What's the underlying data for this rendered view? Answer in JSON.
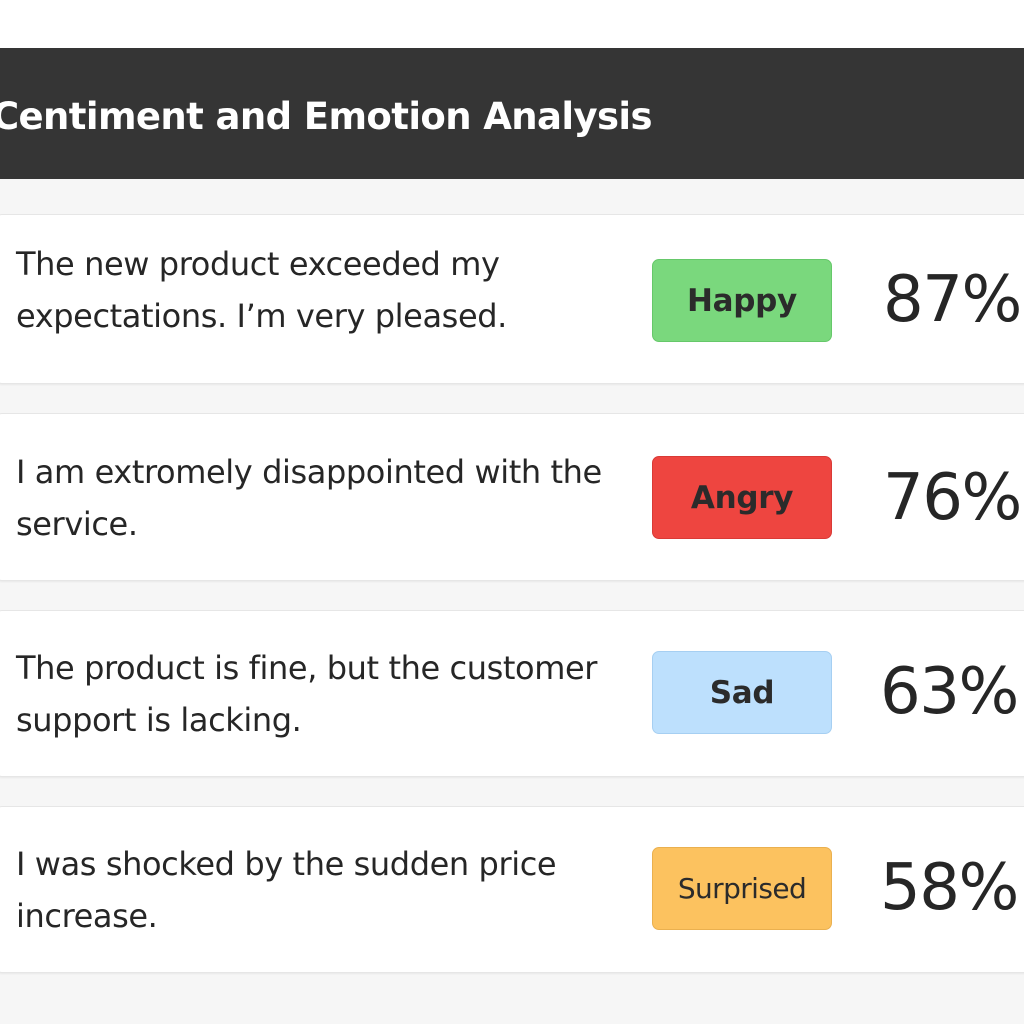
{
  "header": {
    "title": "Centiment and Emotion Analysis",
    "background_color": "#353535"
  },
  "results": [
    {
      "text": "The new product exceeded my expectations. I’m very pleased.",
      "emotion": "Happy",
      "score": "87%",
      "badge_color": "#7ad87d",
      "badge_border": "#66c86a"
    },
    {
      "text": "I am extromely disappointed with the service.",
      "emotion": "Angry",
      "score": "76%",
      "badge_color": "#ee4540",
      "badge_border": "#d93a36"
    },
    {
      "text": "The product is fine, but the customer support is lacking.",
      "emotion": "Sad",
      "score": "63%",
      "badge_color": "#bde0fd",
      "badge_border": "#a6cff2"
    },
    {
      "text": "I was shocked by the sudden price increase.",
      "emotion": "Surprised",
      "score": "58%",
      "badge_color": "#fcc25f",
      "badge_border": "#eab04f"
    }
  ]
}
